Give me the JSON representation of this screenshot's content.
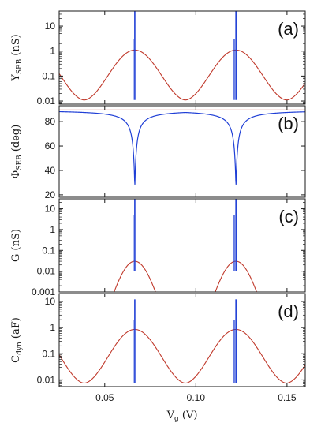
{
  "chart_data": [
    {
      "panel_tag": "(a)",
      "type": "line",
      "yscale": "log",
      "ylabel": {
        "base": "Y",
        "sub": "SEB",
        "unit": " (nS)"
      },
      "xlim": [
        0.025,
        0.16
      ],
      "ylim": [
        0.0075,
        40
      ],
      "yticks": [
        0.01,
        0.1,
        1,
        10
      ],
      "yticklabels": [
        "0.01",
        "0.1",
        "1",
        "10"
      ],
      "show_x_ticklabels": false,
      "series": [
        {
          "color": "#c0392b",
          "kind": "bell",
          "centers": [
            0.0665,
            0.122
          ],
          "peak": 1.1,
          "floor": 0.011,
          "period": 0.0555
        },
        {
          "color": "#1f3fd6",
          "kind": "spike",
          "centers": [
            0.0665,
            0.122
          ],
          "spike_top": 40,
          "spike_secondary": 3.0,
          "base": 0.011
        }
      ]
    },
    {
      "panel_tag": "(b)",
      "type": "line",
      "yscale": "linear",
      "ylabel": {
        "base": "Φ",
        "sub": "SEB",
        "unit": " (deg)"
      },
      "xlim": [
        0.025,
        0.16
      ],
      "ylim": [
        18,
        93
      ],
      "yticks": [
        20,
        40,
        60,
        80
      ],
      "yticklabels": [
        "20",
        "40",
        "60",
        "80"
      ],
      "show_x_ticklabels": false,
      "series": [
        {
          "color": "#c0392b",
          "kind": "flat",
          "value": 89.5
        },
        {
          "color": "#1f3fd6",
          "kind": "dip",
          "centers": [
            0.0665,
            0.122
          ],
          "baseline": 89.5,
          "minimum": 25
        }
      ]
    },
    {
      "panel_tag": "(c)",
      "type": "line",
      "yscale": "log",
      "ylabel": {
        "base": "G",
        "sub": "",
        "unit": " (nS)"
      },
      "xlim": [
        0.025,
        0.16
      ],
      "ylim": [
        0.001,
        30
      ],
      "yticks": [
        0.001,
        0.01,
        0.1,
        1,
        10
      ],
      "yticklabels": [
        "0.001",
        "0.01",
        "0.1",
        "1",
        "10"
      ],
      "show_x_ticklabels": false,
      "series": [
        {
          "color": "#c0392b",
          "kind": "bell",
          "centers": [
            0.0665,
            0.122
          ],
          "peak": 0.03,
          "floor": 1e-06,
          "period": 0.0555
        },
        {
          "color": "#1f3fd6",
          "kind": "spike",
          "centers": [
            0.0665,
            0.122
          ],
          "spike_top": 30,
          "spike_secondary": 5.0,
          "base": 0.01
        }
      ]
    },
    {
      "panel_tag": "(d)",
      "type": "line",
      "yscale": "log",
      "ylabel": {
        "base": "C",
        "sub": "dyn",
        "unit": " (aF)"
      },
      "xlim": [
        0.025,
        0.16
      ],
      "ylim": [
        0.0055,
        20
      ],
      "yticks": [
        0.01,
        0.1,
        1,
        10
      ],
      "yticklabels": [
        "0.01",
        "0.1",
        "1",
        "10"
      ],
      "show_x_ticklabels": true,
      "series": [
        {
          "color": "#c0392b",
          "kind": "bell",
          "centers": [
            0.0665,
            0.122
          ],
          "peak": 0.85,
          "floor": 0.0075,
          "period": 0.0555
        },
        {
          "color": "#1f3fd6",
          "kind": "spike",
          "centers": [
            0.0665,
            0.122
          ],
          "spike_top": 12,
          "spike_secondary": 2.0,
          "base": 0.0075
        }
      ]
    }
  ],
  "x_axis": {
    "ticks": [
      0.05,
      0.1,
      0.15
    ],
    "ticklabels": [
      "0.05",
      "0.10",
      "0.15"
    ],
    "label": {
      "base": "V",
      "sub": "g",
      "unit": " (V)"
    }
  }
}
